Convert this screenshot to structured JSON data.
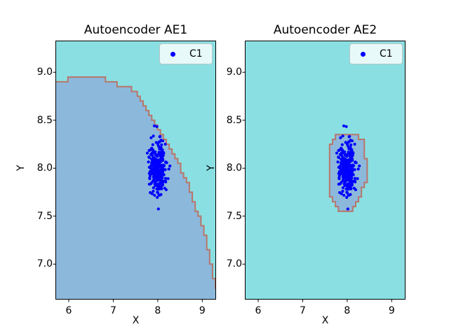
{
  "figure": {
    "background": "#ffffff",
    "plot_bg": "#8adfe2",
    "region_fill": "#8cb8dc",
    "region_edge": "#b8766a",
    "point_color": "#0000ff",
    "frame_color": "#000000",
    "legend_border": "#b9c6c6"
  },
  "chart_data": [
    {
      "type": "scatter",
      "title": "Autoencoder AE1",
      "xlabel": "X",
      "ylabel": "Y",
      "xlim": [
        5.7,
        9.31
      ],
      "ylim": [
        6.63,
        9.33
      ],
      "xticks": [
        6,
        7,
        8,
        9
      ],
      "xtick_labels": [
        "6",
        "7",
        "8",
        "9"
      ],
      "yticks": [
        7.0,
        7.5,
        8.0,
        8.5,
        9.0
      ],
      "ytick_labels": [
        "7.0",
        "7.5",
        "8.0",
        "8.5",
        "9.0"
      ],
      "legend": {
        "location": "upper right",
        "entries": [
          {
            "label": "C1"
          }
        ]
      },
      "series": [
        {
          "name": "C1",
          "type": "gaussian-cluster",
          "center": [
            8.0,
            8.0
          ],
          "std": [
            0.09,
            0.135
          ],
          "n": 300,
          "seed": 7
        }
      ],
      "decision_region": {
        "closed": false,
        "boundary": [
          [
            5.7,
            8.89
          ],
          [
            6.03,
            8.93
          ],
          [
            6.79,
            8.93
          ],
          [
            7.02,
            8.88
          ],
          [
            7.53,
            8.8
          ],
          [
            7.92,
            8.49
          ],
          [
            8.32,
            8.18
          ],
          [
            8.63,
            7.89
          ],
          [
            8.87,
            7.56
          ],
          [
            9.03,
            7.35
          ],
          [
            9.15,
            7.13
          ],
          [
            9.26,
            6.85
          ],
          [
            9.31,
            6.76
          ]
        ],
        "close_via": [
          [
            9.31,
            6.63
          ],
          [
            5.7,
            6.63
          ]
        ]
      }
    },
    {
      "type": "scatter",
      "title": "Autoencoder AE2",
      "xlabel": "X",
      "ylabel": "Y",
      "xlim": [
        5.7,
        9.31
      ],
      "ylim": [
        6.63,
        9.33
      ],
      "xticks": [
        6,
        7,
        8,
        9
      ],
      "xtick_labels": [
        "6",
        "7",
        "8",
        "9"
      ],
      "yticks": [
        7.0,
        7.5,
        8.0,
        8.5,
        9.0
      ],
      "ytick_labels": [
        "7.0",
        "7.5",
        "8.0",
        "8.5",
        "9.0"
      ],
      "legend": {
        "location": "upper right",
        "entries": [
          {
            "label": "C1"
          }
        ]
      },
      "series": [
        {
          "name": "C1",
          "type": "gaussian-cluster",
          "center": [
            8.0,
            8.0
          ],
          "std": [
            0.09,
            0.135
          ],
          "n": 300,
          "seed": 7
        }
      ],
      "decision_region": {
        "closed": true,
        "boundary": [
          [
            7.8,
            8.37
          ],
          [
            8.16,
            8.37
          ],
          [
            8.32,
            8.31
          ],
          [
            8.41,
            8.21
          ],
          [
            8.43,
            7.87
          ],
          [
            8.3,
            7.7
          ],
          [
            8.13,
            7.56
          ],
          [
            7.81,
            7.56
          ],
          [
            7.67,
            7.65
          ],
          [
            7.58,
            7.83
          ],
          [
            7.58,
            8.16
          ],
          [
            7.67,
            8.27
          ]
        ],
        "close_via": []
      }
    }
  ]
}
